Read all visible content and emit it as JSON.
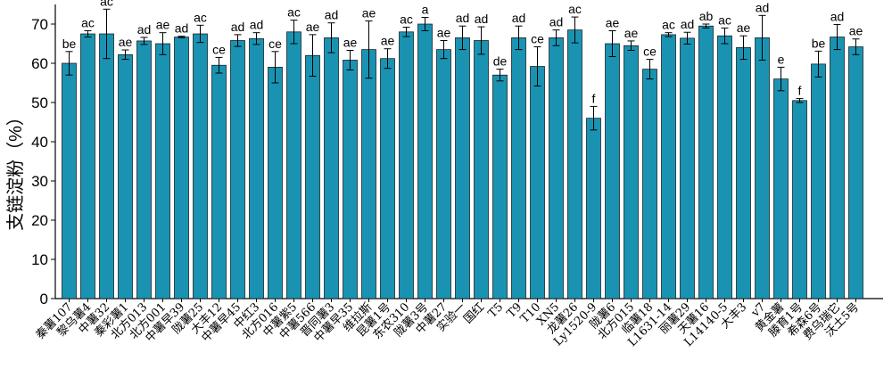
{
  "colors": {
    "bar": "#1a93b2",
    "bar_edge": "#0d0d0d",
    "axis": "#000000"
  },
  "chart_data": {
    "type": "bar",
    "title": "",
    "xlabel": "",
    "ylabel": "支链淀粉（%）",
    "ylim": [
      0,
      75
    ],
    "yticks": [
      0,
      10,
      20,
      30,
      40,
      50,
      60,
      70
    ],
    "grid": false,
    "legend": "none",
    "categories": [
      "秦薯107",
      "黎乌薯4",
      "中薯32",
      "秦彩薯1",
      "北方013",
      "北方001",
      "中薯早39",
      "陇薯25",
      "大丰12",
      "中薯早45",
      "中红3",
      "北方016",
      "中薯紫5",
      "中薯566",
      "晋同薯3",
      "中薯早35",
      "维拉斯",
      "昆薯1号",
      "东农310",
      "陇薯3号",
      "中薯27",
      "实验一",
      "国红",
      "T5",
      "T9",
      "T10",
      "XN5",
      "龙薯26",
      "Ly1520-9",
      "陇薯6",
      "北方015",
      "临薯18",
      "L1631-14",
      "丽薯29",
      "天薯16",
      "L14140-5",
      "大丰3",
      "v7",
      "黄金薯",
      "滕育1号",
      "希森6号",
      "费乌瑞它",
      "沃土5号"
    ],
    "values": [
      60.0,
      67.5,
      67.5,
      62.2,
      65.7,
      65.0,
      66.7,
      67.5,
      59.5,
      65.8,
      66.3,
      59.0,
      68.0,
      62.0,
      66.5,
      60.8,
      63.5,
      61.2,
      68.0,
      70.0,
      63.5,
      66.5,
      65.8,
      57.0,
      66.5,
      59.2,
      66.5,
      68.5,
      46.0,
      65.0,
      64.5,
      58.5,
      67.3,
      66.4,
      69.5,
      67.0,
      64.0,
      66.5,
      56.0,
      50.5,
      59.8,
      66.7,
      64.2
    ],
    "errors": [
      3.0,
      0.8,
      6.3,
      1.2,
      0.9,
      2.8,
      0.2,
      2.2,
      2.0,
      1.5,
      1.5,
      4.0,
      3.0,
      5.3,
      3.8,
      2.5,
      7.3,
      2.5,
      1.2,
      1.7,
      2.3,
      3.0,
      3.5,
      1.5,
      3.0,
      5.0,
      2.0,
      3.3,
      3.0,
      3.3,
      1.2,
      2.5,
      0.5,
      1.5,
      0.5,
      2.0,
      3.0,
      5.7,
      3.0,
      0.5,
      3.3,
      3.2,
      2.0
    ],
    "significance": [
      "be",
      "ac",
      "ac",
      "ae",
      "ad",
      "ae",
      "ad",
      "ac",
      "ce",
      "ad",
      "ad",
      "ce",
      "ac",
      "ae",
      "ad",
      "ae",
      "ae",
      "ae",
      "ac",
      "a",
      "ae",
      "ad",
      "ad",
      "de",
      "ad",
      "ce",
      "ad",
      "ac",
      "f",
      "ae",
      "ae",
      "ce",
      "ac",
      "ad",
      "ab",
      "ac",
      "ae",
      "ad",
      "e",
      "f",
      "be",
      "ad",
      "ae"
    ]
  }
}
